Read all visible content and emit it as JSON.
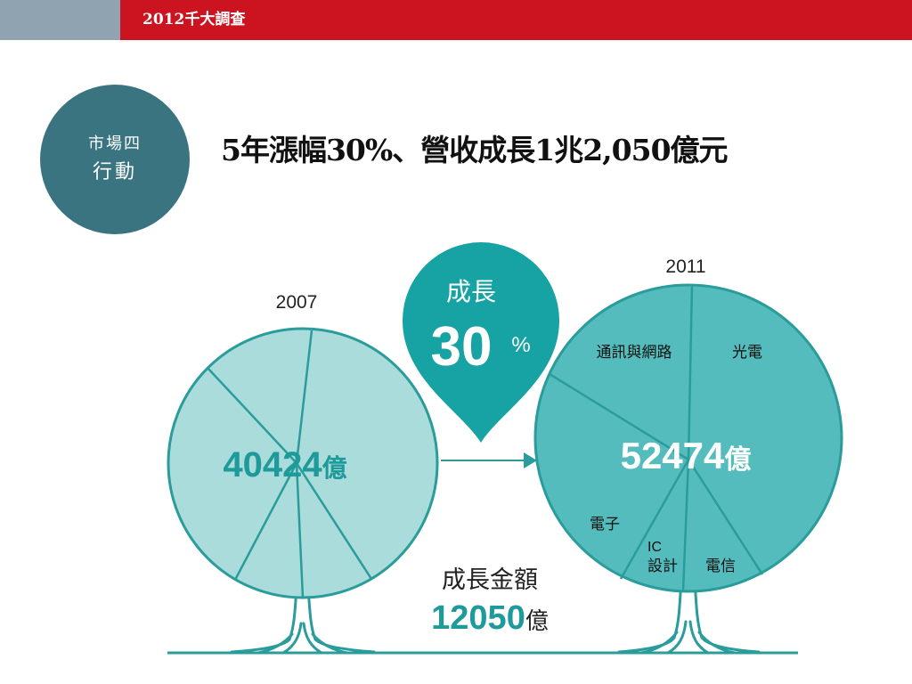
{
  "header": {
    "title": "2012千大調查"
  },
  "badge": {
    "line1": "市場四",
    "line2": "行動"
  },
  "title": "5年漲幅30%、營收成長1兆2,050億元",
  "infographic": {
    "year_left": "2007",
    "year_right": "2011",
    "growth_label": "成長",
    "growth_value": "30",
    "growth_unit": "%",
    "left_value": "40424",
    "right_value": "52474",
    "unit": "億",
    "segments": {
      "telecom_network": "通訊與網路",
      "optoelectronics": "光電",
      "electronics": "電子",
      "ic_line1": "IC",
      "ic_line2": "設計",
      "telecom": "電信"
    },
    "amount_label": "成長金額",
    "amount_value": "12050",
    "colors": {
      "left_fill": "#a9dcda",
      "right_fill": "#55bcbd",
      "stroke": "#2a9c9b",
      "pin": "#17a3a3",
      "header_red": "#cc1320",
      "badge": "#3a7480"
    }
  }
}
